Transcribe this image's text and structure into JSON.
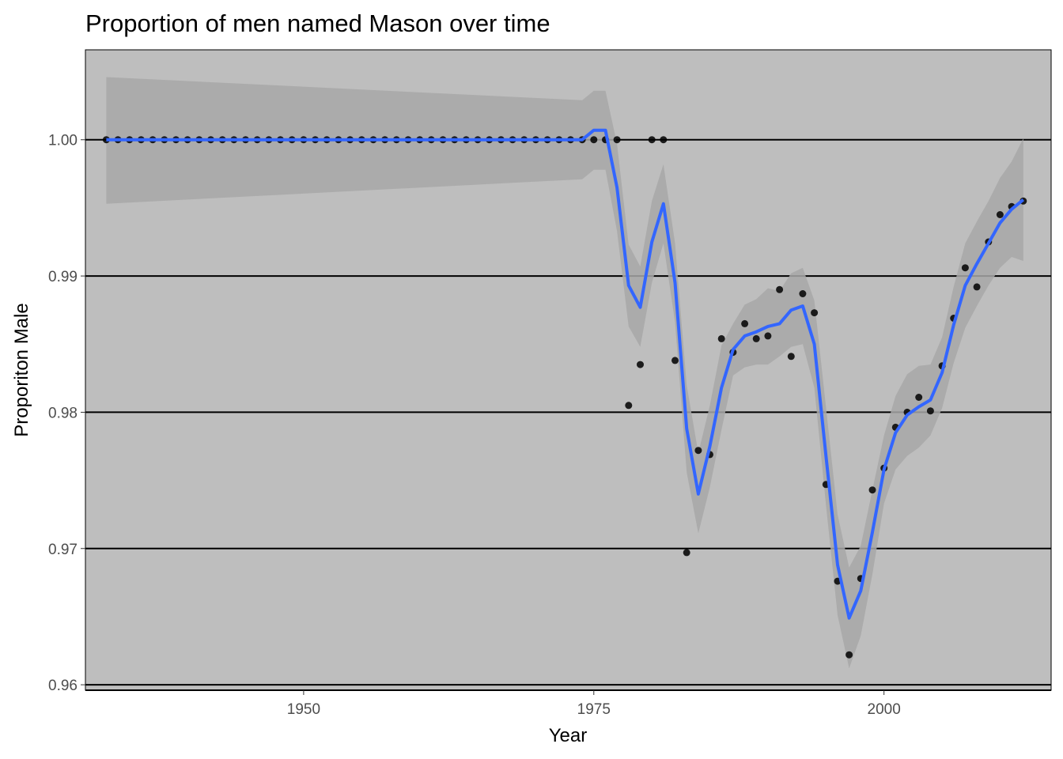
{
  "chart_data": {
    "type": "scatter",
    "title": "Proportion of men named Mason over time",
    "xlabel": "Year",
    "ylabel": "Proporiton Male",
    "xlim": [
      1931.2,
      2014.4
    ],
    "ylim": [
      0.9596,
      1.0066
    ],
    "x_ticks": [
      1950,
      1975,
      2000
    ],
    "x_tick_labels": [
      "1950",
      "1975",
      "2000"
    ],
    "y_ticks": [
      0.96,
      0.97,
      0.98,
      0.99,
      1.0
    ],
    "y_tick_labels": [
      "0.96",
      "0.97",
      "0.98",
      "0.99",
      "1.00"
    ],
    "grid": "horizontal major lines",
    "colors": {
      "panel_background": "#bebebe",
      "ribbon": "#a8a8a8",
      "smooth_line": "#3366ff",
      "points": "#000000",
      "grid": "#000000"
    },
    "series": [
      {
        "type": "points",
        "x": [
          1933,
          1934,
          1935,
          1936,
          1937,
          1938,
          1939,
          1940,
          1941,
          1942,
          1943,
          1944,
          1945,
          1946,
          1947,
          1948,
          1949,
          1950,
          1951,
          1952,
          1953,
          1954,
          1955,
          1956,
          1957,
          1958,
          1959,
          1960,
          1961,
          1962,
          1963,
          1964,
          1965,
          1966,
          1967,
          1968,
          1969,
          1970,
          1971,
          1972,
          1973,
          1974,
          1975,
          1976,
          1977,
          1978,
          1979,
          1980,
          1981,
          1982,
          1983,
          1984,
          1985,
          1986,
          1987,
          1988,
          1989,
          1990,
          1991,
          1992,
          1993,
          1994,
          1995,
          1996,
          1997,
          1998,
          1999,
          2000,
          2001,
          2002,
          2003,
          2004,
          2005,
          2006,
          2007,
          2008,
          2009,
          2010,
          2011,
          2012
        ],
        "y": [
          1.0,
          1.0,
          1.0,
          1.0,
          1.0,
          1.0,
          1.0,
          1.0,
          1.0,
          1.0,
          1.0,
          1.0,
          1.0,
          1.0,
          1.0,
          1.0,
          1.0,
          1.0,
          1.0,
          1.0,
          1.0,
          1.0,
          1.0,
          1.0,
          1.0,
          1.0,
          1.0,
          1.0,
          1.0,
          1.0,
          1.0,
          1.0,
          1.0,
          1.0,
          1.0,
          1.0,
          1.0,
          1.0,
          1.0,
          1.0,
          1.0,
          1.0,
          1.0,
          1.0,
          1.0,
          0.9805,
          0.9835,
          1.0,
          1.0,
          0.9838,
          0.9697,
          0.9772,
          0.9769,
          0.9854,
          0.9844,
          0.9865,
          0.9854,
          0.9856,
          0.989,
          0.9841,
          0.9887,
          0.9873,
          0.9747,
          0.9676,
          0.9622,
          0.9678,
          0.9743,
          0.9759,
          0.9789,
          0.98,
          0.9811,
          0.9801,
          0.9834,
          0.9869,
          0.9906,
          0.9892,
          0.9925,
          0.9945,
          0.9951,
          0.9955
        ]
      },
      {
        "type": "smooth",
        "x": [
          1933,
          1974,
          1975,
          1976,
          1977,
          1978,
          1979,
          1980,
          1981,
          1982,
          1983,
          1984,
          1985,
          1986,
          1987,
          1988,
          1989,
          1990,
          1991,
          1992,
          1993,
          1994,
          1995,
          1996,
          1997,
          1998,
          1999,
          2000,
          2001,
          2002,
          2003,
          2004,
          2005,
          2006,
          2007,
          2008,
          2009,
          2010,
          2011,
          2012
        ],
        "y": [
          1.0,
          1.0,
          1.0007,
          1.0007,
          0.9965,
          0.9893,
          0.9877,
          0.9925,
          0.9953,
          0.9895,
          0.9788,
          0.974,
          0.9775,
          0.9818,
          0.9846,
          0.9856,
          0.9859,
          0.9863,
          0.9865,
          0.9875,
          0.9878,
          0.985,
          0.9768,
          0.9688,
          0.9649,
          0.9669,
          0.9712,
          0.9758,
          0.9785,
          0.9798,
          0.9804,
          0.9809,
          0.9829,
          0.9864,
          0.9893,
          0.9909,
          0.9924,
          0.9939,
          0.9949,
          0.9956
        ],
        "lower": [
          0.9953,
          0.9971,
          0.9978,
          0.9978,
          0.9933,
          0.9863,
          0.9848,
          0.9895,
          0.9924,
          0.9866,
          0.9756,
          0.9711,
          0.9745,
          0.9787,
          0.9827,
          0.9833,
          0.9835,
          0.9835,
          0.9841,
          0.9848,
          0.985,
          0.9818,
          0.9732,
          0.9651,
          0.9612,
          0.9636,
          0.9681,
          0.9733,
          0.9758,
          0.9768,
          0.9774,
          0.9783,
          0.9803,
          0.9836,
          0.9862,
          0.9878,
          0.9893,
          0.9906,
          0.9914,
          0.9911
        ],
        "upper": [
          1.0046,
          1.0029,
          1.0036,
          1.0036,
          0.9997,
          0.9923,
          0.9907,
          0.9955,
          0.9982,
          0.9924,
          0.982,
          0.977,
          0.9805,
          0.9849,
          0.9865,
          0.9879,
          0.9883,
          0.9891,
          0.9889,
          0.9902,
          0.9906,
          0.9882,
          0.9804,
          0.9725,
          0.9686,
          0.9702,
          0.9743,
          0.9783,
          0.9812,
          0.9828,
          0.9834,
          0.9835,
          0.9855,
          0.9892,
          0.9924,
          0.994,
          0.9955,
          0.9972,
          0.9984,
          1.0001
        ]
      }
    ]
  }
}
